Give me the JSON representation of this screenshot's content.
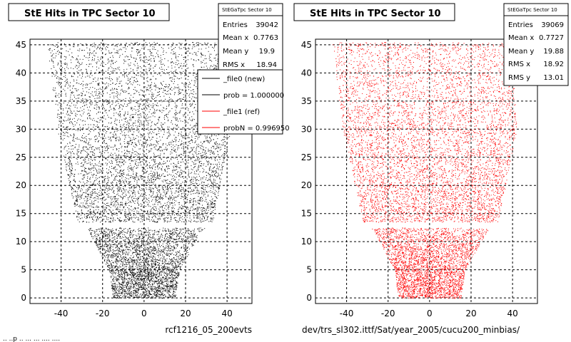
{
  "app": {
    "footer_partial": "..  ..p  .. ... ... .... ...."
  },
  "chart_data": [
    {
      "type": "scatter",
      "title": "StE Hits in TPC Sector 10",
      "xlim": [
        -55,
        52
      ],
      "ylim": [
        -1,
        46
      ],
      "x_ticks": [
        -40,
        -20,
        0,
        20,
        40
      ],
      "y_ticks": [
        0,
        5,
        10,
        15,
        20,
        25,
        30,
        35,
        40,
        45
      ],
      "grid": true,
      "point_color": "#000000",
      "xlabel": "rcf1216_05_200evts",
      "stats": {
        "name": "StEGaTpc Sector 10",
        "rows": [
          {
            "label": "Entries",
            "value": "39042"
          },
          {
            "label": "Mean x",
            "value": "0.7763"
          },
          {
            "label": "Mean y",
            "value": "19.9"
          },
          {
            "label": "RMS x",
            "value": "18.94"
          }
        ]
      },
      "legend": {
        "placement": "top-right",
        "entries": [
          {
            "label": "_file0 (new)",
            "color": "#000000"
          },
          {
            "label": "prob = 1.000000",
            "color": "#000000"
          },
          {
            "label": "_file1 (ref)",
            "color": "#ff0000"
          },
          {
            "label": "probN = 0.996950",
            "color": "#ff0000"
          }
        ]
      },
      "distribution": {
        "entries": 39042,
        "mean_x": 0.7763,
        "mean_y": 19.9,
        "rms_x": 18.94,
        "y_gaps": [
          [
            12.5,
            13.5
          ]
        ],
        "y_edge_x_ranges": [
          [
            0,
            -15,
            15
          ],
          [
            5,
            -17,
            17
          ],
          [
            12,
            -27,
            28
          ],
          [
            13.5,
            -32,
            33
          ],
          [
            30,
            -42,
            42
          ],
          [
            46,
            -47,
            40
          ]
        ]
      }
    },
    {
      "type": "scatter",
      "title": "StE Hits in TPC Sector 10",
      "xlim": [
        -55,
        52
      ],
      "ylim": [
        -1,
        46
      ],
      "x_ticks": [
        -40,
        -20,
        0,
        20,
        40
      ],
      "y_ticks": [
        0,
        5,
        10,
        15,
        20,
        25,
        30,
        35,
        40,
        45
      ],
      "grid": true,
      "point_color": "#ff0000",
      "xlabel": "dev/trs_sl302.ittf/Sat/year_2005/cucu200_minbias/",
      "stats": {
        "name": "StEGaTpc Sector 10",
        "rows": [
          {
            "label": "Entries",
            "value": "39069"
          },
          {
            "label": "Mean x",
            "value": "0.7727"
          },
          {
            "label": "Mean y",
            "value": "19.88"
          },
          {
            "label": "RMS x",
            "value": "18.92"
          },
          {
            "label": "RMS y",
            "value": "13.01"
          }
        ]
      },
      "distribution": {
        "entries": 39069,
        "mean_x": 0.7727,
        "mean_y": 19.88,
        "rms_x": 18.92,
        "rms_y": 13.01,
        "y_gaps": [
          [
            12.5,
            13.5
          ]
        ],
        "y_edge_x_ranges": [
          [
            0,
            -15,
            15
          ],
          [
            5,
            -17,
            17
          ],
          [
            12,
            -27,
            28
          ],
          [
            13.5,
            -32,
            33
          ],
          [
            30,
            -42,
            42
          ],
          [
            46,
            -47,
            40
          ]
        ]
      }
    }
  ]
}
